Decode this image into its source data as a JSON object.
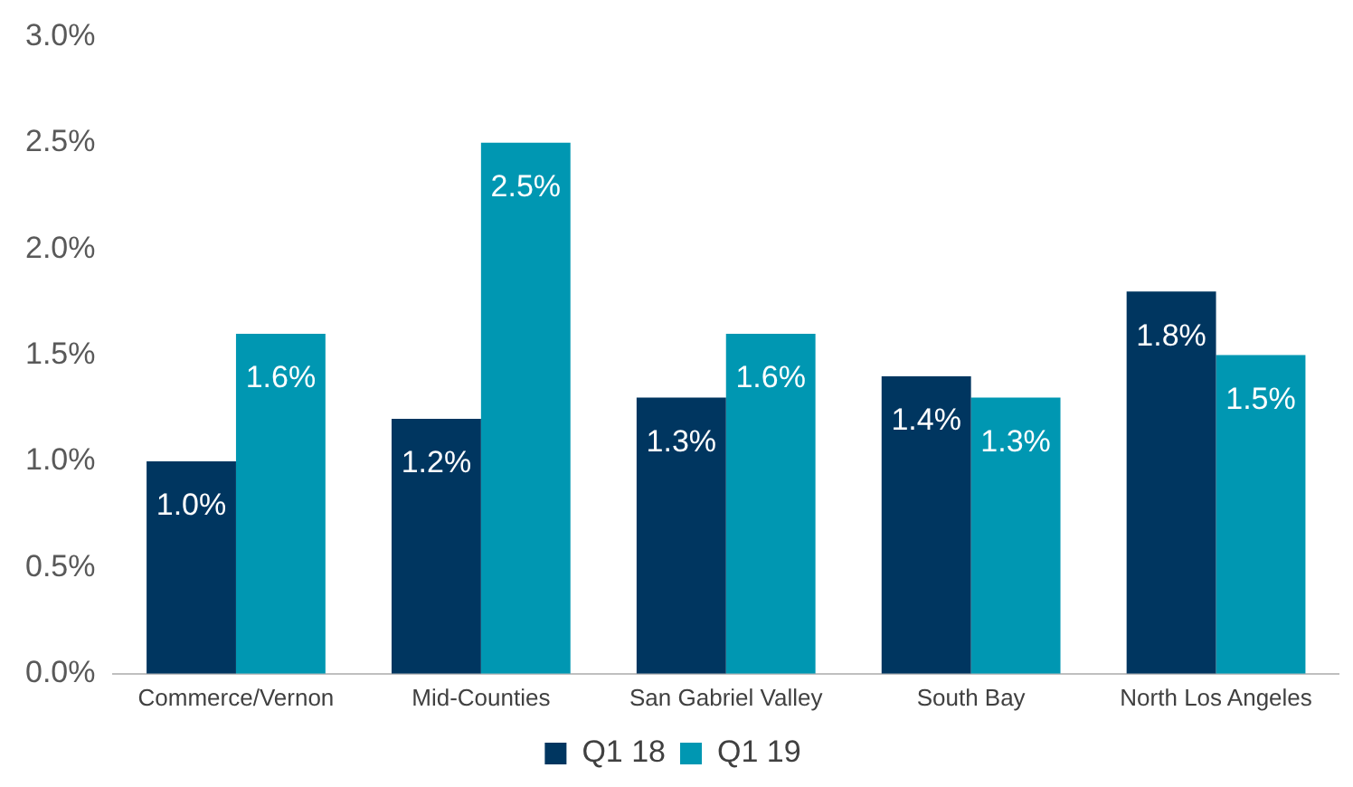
{
  "chart_data": {
    "type": "bar",
    "categories": [
      "Commerce/Vernon",
      "Mid-Counties",
      "San Gabriel Valley",
      "South Bay",
      "North Los Angeles"
    ],
    "series": [
      {
        "name": "Q1 18",
        "color": "#003660",
        "values": [
          1.0,
          1.2,
          1.3,
          1.4,
          1.8
        ],
        "value_labels": [
          "1.0%",
          "1.2%",
          "1.3%",
          "1.4%",
          "1.8%"
        ]
      },
      {
        "name": "Q1 19",
        "color": "#0097b2",
        "values": [
          1.6,
          2.5,
          1.6,
          1.3,
          1.5
        ],
        "value_labels": [
          "1.6%",
          "2.5%",
          "1.6%",
          "1.3%",
          "1.5%"
        ]
      }
    ],
    "ylim": [
      0,
      3
    ],
    "yticks": [
      {
        "value": 0,
        "label": "0.0%"
      },
      {
        "value": 0.5,
        "label": "0.5%"
      },
      {
        "value": 1,
        "label": "1.0%"
      },
      {
        "value": 1.5,
        "label": "1.5%"
      },
      {
        "value": 2,
        "label": "2.0%"
      },
      {
        "value": 2.5,
        "label": "2.5%"
      },
      {
        "value": 3,
        "label": "3.0%"
      }
    ],
    "grid": false,
    "legend": "bottom"
  }
}
